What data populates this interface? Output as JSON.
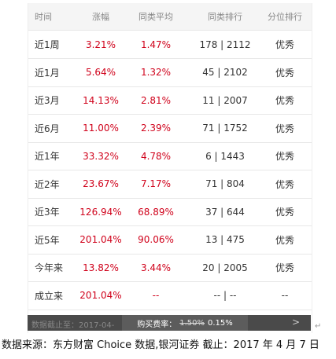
{
  "table": {
    "header": [
      "时间",
      "涨幅",
      "同类平均",
      "同类排行",
      "分位排行"
    ],
    "rows": [
      [
        "近1周",
        "3.21%",
        "1.47%",
        "178 | 2112",
        "优秀"
      ],
      [
        "近1月",
        "5.64%",
        "1.32%",
        "45 | 2102",
        "优秀"
      ],
      [
        "近3月",
        "14.13%",
        "2.81%",
        "11 | 2007",
        "优秀"
      ],
      [
        "近6月",
        "11.00%",
        "2.39%",
        "71 | 1752",
        "优秀"
      ],
      [
        "近1年",
        "33.32%",
        "4.78%",
        "6 | 1443",
        "优秀"
      ],
      [
        "近2年",
        "23.67%",
        "7.17%",
        "71 | 804",
        "优秀"
      ],
      [
        "近3年",
        "126.94%",
        "68.89%",
        "37 | 644",
        "优秀"
      ],
      [
        "近5年",
        "201.04%",
        "90.06%",
        "13 | 475",
        "优秀"
      ],
      [
        "今年来",
        "13.82%",
        "3.44%",
        "20 | 2005",
        "优秀"
      ],
      [
        "成立来",
        "201.04%",
        "--",
        "-- | --",
        "--"
      ]
    ]
  },
  "footer_bar": {
    "cutoff": "数据截止至：2017-04-",
    "fee_label": "购买费率：",
    "fee_old": "1.50%",
    "fee_new": "0.15%",
    "arrow": ">"
  },
  "caption": "数据来源：东方财富 Choice 数据,银河证券   截止：2017 年 4 月 7 日"
}
